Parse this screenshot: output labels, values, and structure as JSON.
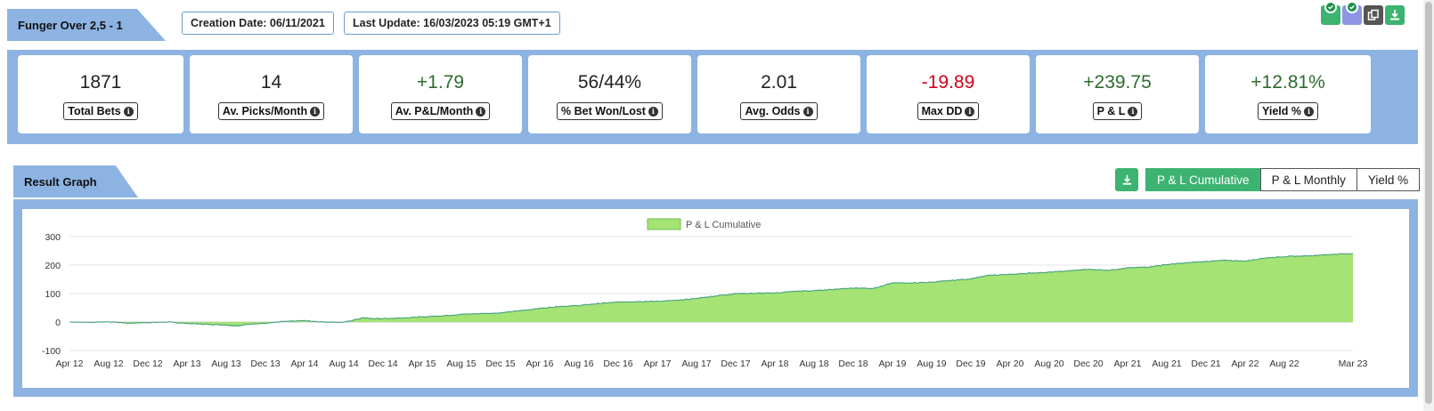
{
  "header": {
    "strategy_name": "Funger Over 2,5 - 1",
    "creation_date": "Creation Date: 06/11/2021",
    "last_update": "Last Update: 16/03/2023 05:19 GMT+1",
    "icons": [
      "unfollow-check-icon",
      "follow-check-icon",
      "copy-icon",
      "download-icon"
    ]
  },
  "stats": [
    {
      "value": "1871",
      "label": "Total Bets",
      "tone": "neutral"
    },
    {
      "value": "14",
      "label": "Av. Picks/Month",
      "tone": "neutral"
    },
    {
      "value": "+1.79",
      "label": "Av. P&L/Month",
      "tone": "positive"
    },
    {
      "value": "56/44%",
      "label": "% Bet Won/Lost",
      "tone": "neutral"
    },
    {
      "value": "2.01",
      "label": "Avg. Odds",
      "tone": "neutral"
    },
    {
      "value": "-19.89",
      "label": "Max DD",
      "tone": "negative"
    },
    {
      "value": "+239.75",
      "label": "P & L",
      "tone": "positive"
    },
    {
      "value": "+12.81%",
      "label": "Yield %",
      "tone": "positive"
    }
  ],
  "graph_section": {
    "title": "Result Graph",
    "buttons": [
      "P & L Cumulative",
      "P & L Monthly",
      "Yield %"
    ],
    "active_button": "P & L Cumulative"
  },
  "colors": {
    "band": "#8db3e2",
    "accent_green": "#3cb371",
    "area_fill": "#a4e374",
    "area_line": "#3a9a7a",
    "positive": "#2e6b2e",
    "negative": "#d0021b"
  },
  "chart_data": {
    "type": "area",
    "title": "",
    "xlabel": "",
    "ylabel": "",
    "legend": "top-center",
    "grid": true,
    "ylim": [
      -100,
      300
    ],
    "yticks": [
      -100,
      0,
      100,
      200,
      300
    ],
    "x_tick_labels": [
      "Apr 12",
      "Aug 12",
      "Dec 12",
      "Apr 13",
      "Aug 13",
      "Dec 13",
      "Apr 14",
      "Aug 14",
      "Dec 14",
      "Apr 15",
      "Aug 15",
      "Dec 15",
      "Apr 16",
      "Aug 16",
      "Dec 16",
      "Apr 17",
      "Aug 17",
      "Dec 17",
      "Apr 18",
      "Aug 18",
      "Dec 18",
      "Apr 19",
      "Aug 19",
      "Dec 19",
      "Apr 20",
      "Aug 20",
      "Dec 20",
      "Apr 21",
      "Aug 21",
      "Dec 21",
      "Apr 22",
      "Aug 22",
      "Mar 23"
    ],
    "series": [
      {
        "name": "P & L Cumulative",
        "points": [
          [
            "Apr 12",
            0
          ],
          [
            "Jun 12",
            -1
          ],
          [
            "Aug 12",
            1
          ],
          [
            "Oct 12",
            -4
          ],
          [
            "Dec 12",
            -2
          ],
          [
            "Feb 13",
            0
          ],
          [
            "Apr 13",
            -5
          ],
          [
            "Jun 13",
            -8
          ],
          [
            "Aug 13",
            -10
          ],
          [
            "Sep 13",
            -14
          ],
          [
            "Oct 13",
            -9
          ],
          [
            "Dec 13",
            -5
          ],
          [
            "Feb 14",
            3
          ],
          [
            "Apr 14",
            5
          ],
          [
            "Jun 14",
            0
          ],
          [
            "Aug 14",
            -1
          ],
          [
            "Oct 14",
            15
          ],
          [
            "Nov 14",
            12
          ],
          [
            "Dec 14",
            12
          ],
          [
            "Feb 15",
            15
          ],
          [
            "Apr 15",
            18
          ],
          [
            "Jun 15",
            22
          ],
          [
            "Aug 15",
            27
          ],
          [
            "Oct 15",
            30
          ],
          [
            "Dec 15",
            32
          ],
          [
            "Feb 16",
            40
          ],
          [
            "Apr 16",
            48
          ],
          [
            "Jun 16",
            55
          ],
          [
            "Aug 16",
            58
          ],
          [
            "Oct 16",
            65
          ],
          [
            "Dec 16",
            70
          ],
          [
            "Feb 17",
            72
          ],
          [
            "Apr 17",
            73
          ],
          [
            "Jun 17",
            76
          ],
          [
            "Aug 17",
            83
          ],
          [
            "Oct 17",
            92
          ],
          [
            "Dec 17",
            100
          ],
          [
            "Feb 18",
            101
          ],
          [
            "Apr 18",
            102
          ],
          [
            "Jun 18",
            108
          ],
          [
            "Aug 18",
            110
          ],
          [
            "Oct 18",
            115
          ],
          [
            "Dec 18",
            120
          ],
          [
            "Feb 19",
            117
          ],
          [
            "Apr 19",
            138
          ],
          [
            "Jun 19",
            137
          ],
          [
            "Aug 19",
            140
          ],
          [
            "Oct 19",
            146
          ],
          [
            "Dec 19",
            152
          ],
          [
            "Feb 20",
            165
          ],
          [
            "Apr 20",
            167
          ],
          [
            "Jun 20",
            172
          ],
          [
            "Aug 20",
            175
          ],
          [
            "Oct 20",
            180
          ],
          [
            "Dec 20",
            185
          ],
          [
            "Feb 21",
            182
          ],
          [
            "Apr 21",
            190
          ],
          [
            "Jun 21",
            193
          ],
          [
            "Aug 21",
            202
          ],
          [
            "Oct 21",
            208
          ],
          [
            "Dec 21",
            213
          ],
          [
            "Feb 22",
            217
          ],
          [
            "Apr 22",
            214
          ],
          [
            "Jun 22",
            225
          ],
          [
            "Aug 22",
            230
          ],
          [
            "Oct 22",
            232
          ],
          [
            "Dec 22",
            236
          ],
          [
            "Feb 23",
            240
          ],
          [
            "Mar 23",
            240
          ]
        ]
      }
    ]
  }
}
